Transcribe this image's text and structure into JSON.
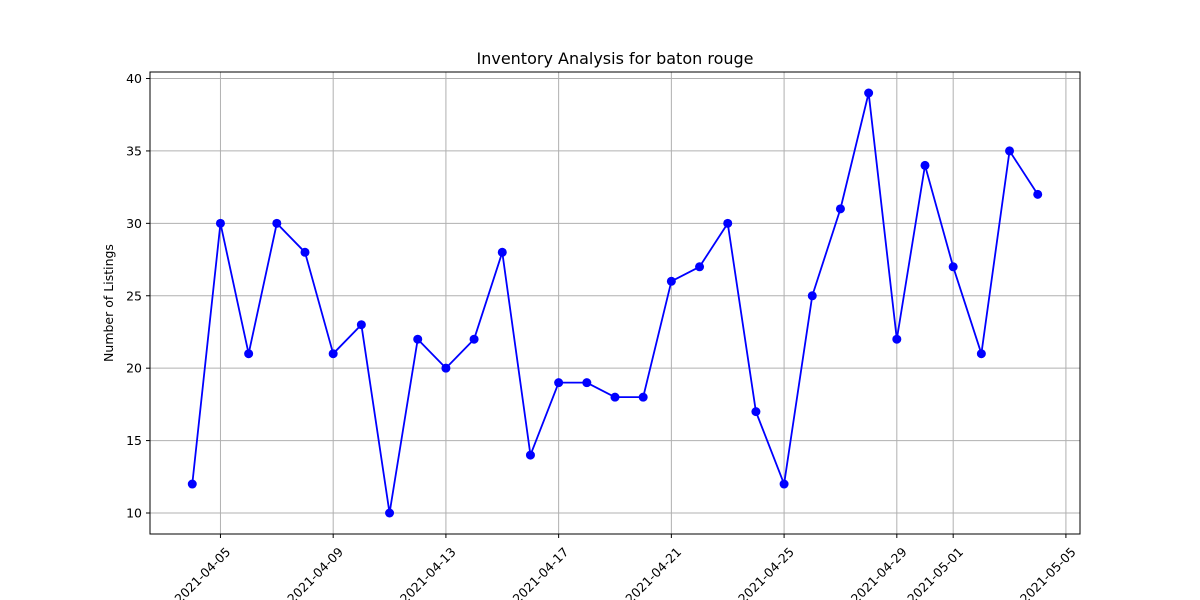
{
  "chart_data": {
    "type": "line",
    "title": "Inventory Analysis for baton rouge",
    "xlabel": "",
    "ylabel": "Number of Listings",
    "x": [
      "2021-04-04",
      "2021-04-05",
      "2021-04-06",
      "2021-04-07",
      "2021-04-08",
      "2021-04-09",
      "2021-04-10",
      "2021-04-11",
      "2021-04-12",
      "2021-04-13",
      "2021-04-14",
      "2021-04-15",
      "2021-04-16",
      "2021-04-17",
      "2021-04-18",
      "2021-04-19",
      "2021-04-20",
      "2021-04-21",
      "2021-04-22",
      "2021-04-23",
      "2021-04-24",
      "2021-04-25",
      "2021-04-26",
      "2021-04-27",
      "2021-04-28",
      "2021-04-29",
      "2021-04-30",
      "2021-05-01",
      "2021-05-02",
      "2021-05-03",
      "2021-05-04"
    ],
    "series": [
      {
        "values": [
          12,
          30,
          21,
          30,
          28,
          21,
          23,
          10,
          22,
          20,
          22,
          28,
          14,
          19,
          19,
          18,
          18,
          26,
          27,
          30,
          17,
          12,
          25,
          31,
          39,
          22,
          34,
          27,
          21,
          35,
          32
        ]
      }
    ],
    "xticks": [
      "2021-04-05",
      "2021-04-09",
      "2021-04-13",
      "2021-04-17",
      "2021-04-21",
      "2021-04-25",
      "2021-04-29",
      "2021-05-01",
      "2021-05-05"
    ],
    "yticks": [
      10,
      15,
      20,
      25,
      30,
      35,
      40
    ],
    "xlim": [
      "2021-04-02.5",
      "2021-05-05.5"
    ],
    "ylim": [
      8.55,
      40.45
    ],
    "grid": true,
    "line_color": "#0000ff",
    "marker": "circle"
  }
}
